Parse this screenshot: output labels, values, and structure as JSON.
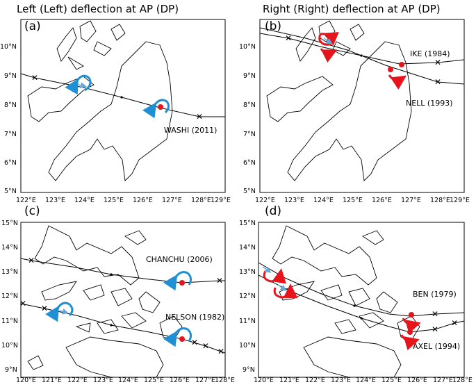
{
  "titles": {
    "left": "Left (Left) deflection at AP (DP)",
    "right": "Right (Right) deflection at AP (DP)"
  },
  "colors": {
    "track": "#000000",
    "coast": "#000000",
    "ap_marker": "#e8141b",
    "left_arrow": "#1f8fd6",
    "right_arrow": "#e8141b",
    "small_arrow": "#6aa7d8"
  },
  "panels": [
    {
      "id": "a",
      "label": "(a)",
      "xticks": [
        "122°E",
        "123°E",
        "124°E",
        "125°E",
        "126°E",
        "127°E",
        "128°E",
        "129°E"
      ],
      "yticks": [
        "10°N",
        "9°N",
        "8°N",
        "7°N",
        "6°N",
        "5°N"
      ],
      "storms": [
        {
          "name": "WASHI (2011)"
        }
      ]
    },
    {
      "id": "b",
      "label": "(b)",
      "xticks": [
        "122°E",
        "123°E",
        "124°E",
        "125°E",
        "126°E",
        "127°E",
        "128°E",
        "129°E"
      ],
      "yticks": [
        "10°N",
        "9°N",
        "8°N",
        "7°N",
        "6°N",
        "5°N"
      ],
      "storms": [
        {
          "name": "IKE (1984)"
        },
        {
          "name": "NELL (1993)"
        }
      ]
    },
    {
      "id": "c",
      "label": "(c)",
      "xticks": [
        "120°E",
        "121°E",
        "122°E",
        "123°E",
        "124°E",
        "125°E",
        "126°E",
        "127°E",
        "128°E"
      ],
      "yticks": [
        "15°N",
        "14°N",
        "13°N",
        "12°N",
        "11°N",
        "10°N",
        "9°N"
      ],
      "storms": [
        {
          "name": "CHANCHU (2006)"
        },
        {
          "name": "NELSON (1982)"
        }
      ]
    },
    {
      "id": "d",
      "label": "(d)",
      "xticks": [
        "120°E",
        "121°E",
        "122°E",
        "123°E",
        "124°E",
        "125°E",
        "126°E",
        "127°E",
        "128°E"
      ],
      "yticks": [
        "15°N",
        "14°N",
        "13°N",
        "12°N",
        "11°N",
        "10°N",
        "9°N"
      ],
      "storms": [
        {
          "name": "BEN (1979)"
        },
        {
          "name": "AXEL (1994)"
        }
      ]
    }
  ]
}
